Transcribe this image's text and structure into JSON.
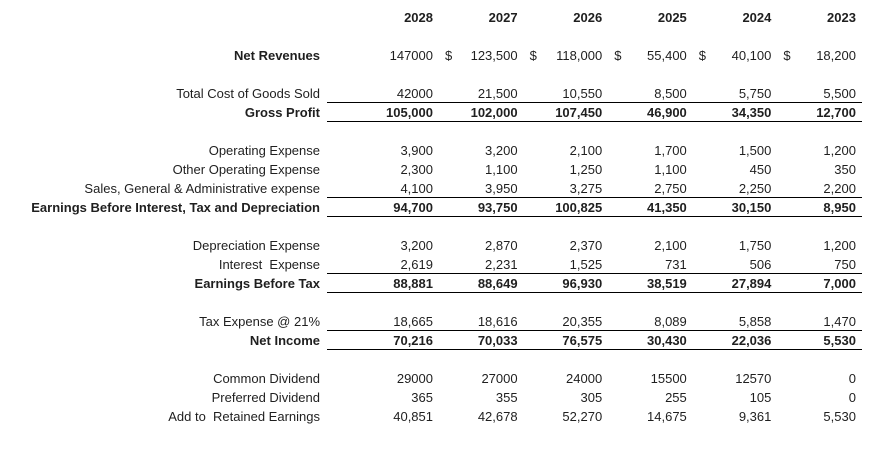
{
  "table": {
    "title_hint": "income-statement",
    "colors": {
      "text": "#1f1f1f",
      "rule": "#000000",
      "background": "#ffffff"
    },
    "years": [
      "2028",
      "2027",
      "2026",
      "2025",
      "2024",
      "2023"
    ],
    "rows": [
      {
        "label": "Net Revenues",
        "style": "label-bold",
        "gap_before": 1,
        "underline": false,
        "currency": [
          "",
          "$",
          "$",
          "$",
          "$",
          "$"
        ],
        "values": [
          "147000",
          "123,500",
          "118,000",
          "55,400",
          "40,100",
          "18,200"
        ]
      },
      {
        "label": "Total Cost of Goods Sold",
        "style": "normal",
        "gap_before": 1,
        "underline": true,
        "values": [
          "42000",
          "21,500",
          "10,550",
          "8,500",
          "5,750",
          "5,500"
        ]
      },
      {
        "label": "Gross Profit",
        "style": "bold",
        "gap_before": 0,
        "underline": true,
        "values": [
          "105,000",
          "102,000",
          "107,450",
          "46,900",
          "34,350",
          "12,700"
        ]
      },
      {
        "label": "Operating Expense",
        "style": "normal",
        "gap_before": 1,
        "underline": false,
        "values": [
          "3,900",
          "3,200",
          "2,100",
          "1,700",
          "1,500",
          "1,200"
        ]
      },
      {
        "label": "Other Operating Expense",
        "style": "normal",
        "gap_before": 0,
        "underline": false,
        "values": [
          "2,300",
          "1,100",
          "1,250",
          "1,100",
          "450",
          "350"
        ]
      },
      {
        "label": "Sales, General & Administrative expense",
        "style": "normal",
        "gap_before": 0,
        "underline": true,
        "values": [
          "4,100",
          "3,950",
          "3,275",
          "2,750",
          "2,250",
          "2,200"
        ]
      },
      {
        "label": "Earnings Before Interest, Tax and Depreciation",
        "style": "bold",
        "gap_before": 0,
        "underline": true,
        "values": [
          "94,700",
          "93,750",
          "100,825",
          "41,350",
          "30,150",
          "8,950"
        ]
      },
      {
        "label": "Depreciation Expense",
        "style": "normal",
        "gap_before": 1,
        "underline": false,
        "values": [
          "3,200",
          "2,870",
          "2,370",
          "2,100",
          "1,750",
          "1,200"
        ]
      },
      {
        "label": "Interest  Expense",
        "style": "normal",
        "gap_before": 0,
        "underline": true,
        "values": [
          "2,619",
          "2,231",
          "1,525",
          "731",
          "506",
          "750"
        ]
      },
      {
        "label": "Earnings Before Tax",
        "style": "bold",
        "gap_before": 0,
        "underline": true,
        "values": [
          "88,881",
          "88,649",
          "96,930",
          "38,519",
          "27,894",
          "7,000"
        ]
      },
      {
        "label": "Tax Expense @ 21%",
        "style": "normal",
        "gap_before": 1,
        "underline": true,
        "values": [
          "18,665",
          "18,616",
          "20,355",
          "8,089",
          "5,858",
          "1,470"
        ]
      },
      {
        "label": "Net Income",
        "style": "bold",
        "gap_before": 0,
        "underline": true,
        "values": [
          "70,216",
          "70,033",
          "76,575",
          "30,430",
          "22,036",
          "5,530"
        ]
      },
      {
        "label": "Common Dividend",
        "style": "normal",
        "gap_before": 1,
        "underline": false,
        "values": [
          "29000",
          "27000",
          "24000",
          "15500",
          "12570",
          "0"
        ]
      },
      {
        "label": "Preferred Dividend",
        "style": "normal",
        "gap_before": 0,
        "underline": false,
        "values": [
          "365",
          "355",
          "305",
          "255",
          "105",
          "0"
        ]
      },
      {
        "label": "Add to  Retained Earnings",
        "style": "normal",
        "gap_before": 0,
        "underline": false,
        "values": [
          "40,851",
          "42,678",
          "52,270",
          "14,675",
          "9,361",
          "5,530"
        ]
      }
    ]
  }
}
